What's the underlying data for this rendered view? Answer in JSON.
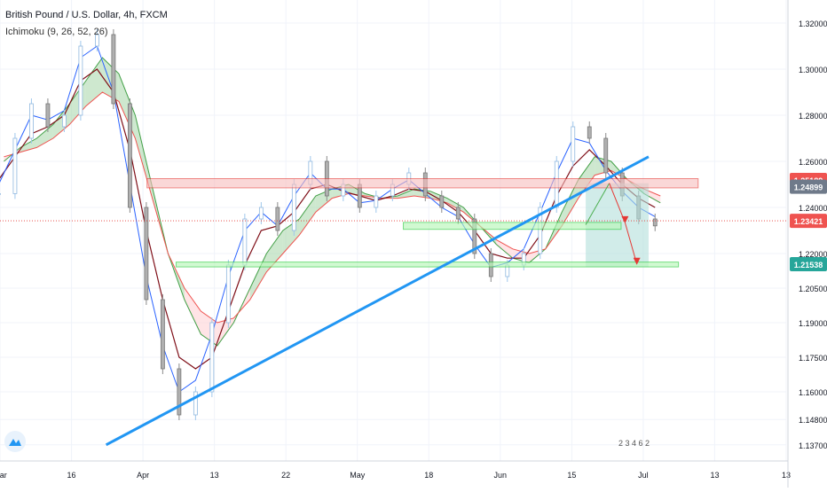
{
  "legend": {
    "symbol_text": "British Pound / U.S. Dollar, 4h, FXCM",
    "indicator_text": "Ichimoku (9, 26, 52, 26)"
  },
  "colors": {
    "up_candle": "#2196f3",
    "tenkan": "#2962ff",
    "kijun": "#7f0f18",
    "senkou_a": "#43a047",
    "senkou_b": "#ef5350",
    "cloud_bull": "#a5d6a7",
    "cloud_bear": "#ffcdd2",
    "trendline": "#2196f3",
    "resistance_zone": "#f8bdbd",
    "support_zone": "#b9f6b9",
    "projection_arrow": "#e53935"
  },
  "event_badges_text": "2 3  4 6 2",
  "chart_data": {
    "type": "line",
    "title": "British Pound / U.S. Dollar, 4h, FXCM",
    "xlabel": "",
    "ylabel": "",
    "x_ticks": [
      "Mar",
      "16",
      "Apr",
      "13",
      "22",
      "May",
      "18",
      "Jun",
      "15",
      "Jul",
      "13",
      "13"
    ],
    "y_ticks": [
      1.32,
      1.3,
      1.28,
      1.26,
      1.24,
      1.22,
      1.205,
      1.19,
      1.175,
      1.16,
      1.148,
      1.137
    ],
    "y_tick_labels": [
      "1.32000",
      "1.30000",
      "1.28000",
      "1.26000",
      "1.24000",
      "1.22000",
      "1.20500",
      "1.19000",
      "1.17500",
      "1.16000",
      "1.14800",
      "1.13700"
    ],
    "ylim": [
      1.13,
      1.33
    ],
    "price_tags": [
      {
        "label": "1.25189",
        "value": 1.2519,
        "style": "red"
      },
      {
        "label": "1.24899",
        "value": 1.249,
        "style": "gray"
      },
      {
        "label": "1.23421",
        "value": 1.2342,
        "style": "red"
      },
      {
        "label": "1.21538",
        "value": 1.2154,
        "style": "green"
      }
    ],
    "series": [
      {
        "role": "price",
        "values": [
          1.246,
          1.27,
          1.285,
          1.275,
          1.28,
          1.31,
          1.315,
          1.285,
          1.24,
          1.2,
          1.17,
          1.15,
          1.16,
          1.19,
          1.215,
          1.235,
          1.24,
          1.23,
          1.25,
          1.26,
          1.245,
          1.25,
          1.24,
          1.245,
          1.25,
          1.255,
          1.245,
          1.24,
          1.235,
          1.22,
          1.21,
          1.215,
          1.22,
          1.24,
          1.26,
          1.275,
          1.27,
          1.255,
          1.245,
          1.235,
          1.232
        ]
      },
      {
        "role": "tenkan",
        "values": [
          1.25,
          1.265,
          1.28,
          1.278,
          1.282,
          1.305,
          1.31,
          1.29,
          1.25,
          1.21,
          1.18,
          1.16,
          1.165,
          1.185,
          1.21,
          1.23,
          1.238,
          1.232,
          1.245,
          1.255,
          1.248,
          1.248,
          1.242,
          1.243,
          1.248,
          1.252,
          1.246,
          1.24,
          1.236,
          1.224,
          1.214,
          1.216,
          1.222,
          1.238,
          1.255,
          1.27,
          1.268,
          1.256,
          1.247,
          1.24,
          1.236
        ]
      },
      {
        "role": "kijun",
        "values": [
          1.252,
          1.262,
          1.272,
          1.275,
          1.28,
          1.295,
          1.3,
          1.29,
          1.265,
          1.23,
          1.2,
          1.175,
          1.17,
          1.175,
          1.195,
          1.215,
          1.23,
          1.232,
          1.238,
          1.248,
          1.25,
          1.247,
          1.245,
          1.243,
          1.245,
          1.248,
          1.247,
          1.243,
          1.238,
          1.23,
          1.22,
          1.218,
          1.218,
          1.228,
          1.245,
          1.258,
          1.265,
          1.258,
          1.25,
          1.244,
          1.24
        ]
      },
      {
        "role": "senkou_a",
        "values": [
          1.26,
          1.266,
          1.27,
          1.276,
          1.285,
          1.295,
          1.305,
          1.298,
          1.28,
          1.25,
          1.22,
          1.2,
          1.185,
          1.18,
          1.19,
          1.205,
          1.22,
          1.23,
          1.235,
          1.245,
          1.248,
          1.25,
          1.246,
          1.244,
          1.245,
          1.248,
          1.247,
          1.244,
          1.24,
          1.232,
          1.224,
          1.218,
          1.216,
          1.222,
          1.238,
          1.252,
          1.262,
          1.26,
          1.252,
          1.246,
          1.242
        ]
      },
      {
        "role": "senkou_b",
        "values": [
          1.262,
          1.264,
          1.266,
          1.27,
          1.276,
          1.284,
          1.29,
          1.286,
          1.27,
          1.245,
          1.22,
          1.205,
          1.195,
          1.19,
          1.192,
          1.2,
          1.212,
          1.22,
          1.228,
          1.238,
          1.244,
          1.246,
          1.245,
          1.244,
          1.244,
          1.245,
          1.244,
          1.242,
          1.238,
          1.232,
          1.226,
          1.222,
          1.22,
          1.222,
          1.232,
          1.244,
          1.254,
          1.256,
          1.252,
          1.248,
          1.245
        ]
      }
    ],
    "annotations": {
      "trendline": [
        [
          0.135,
          1.137
        ],
        [
          0.825,
          1.262
        ]
      ],
      "resistance_zone": {
        "x": [
          0.187,
          0.888
        ],
        "y": [
          1.2485,
          1.2525
        ]
      },
      "support_zones": [
        {
          "x": [
            0.513,
            0.79
          ],
          "y": [
            1.2305,
            1.2335
          ]
        },
        {
          "x": [
            0.224,
            0.863
          ],
          "y": [
            1.2142,
            1.2163
          ]
        }
      ],
      "projection_box": {
        "x": [
          0.745,
          0.825
        ],
        "y": [
          1.2142,
          1.2505
        ]
      },
      "projection_arrow": [
        [
          0.745,
          1.2325
        ],
        [
          0.775,
          1.2505
        ],
        [
          0.795,
          1.2335
        ],
        [
          0.81,
          1.2155
        ]
      ]
    }
  }
}
